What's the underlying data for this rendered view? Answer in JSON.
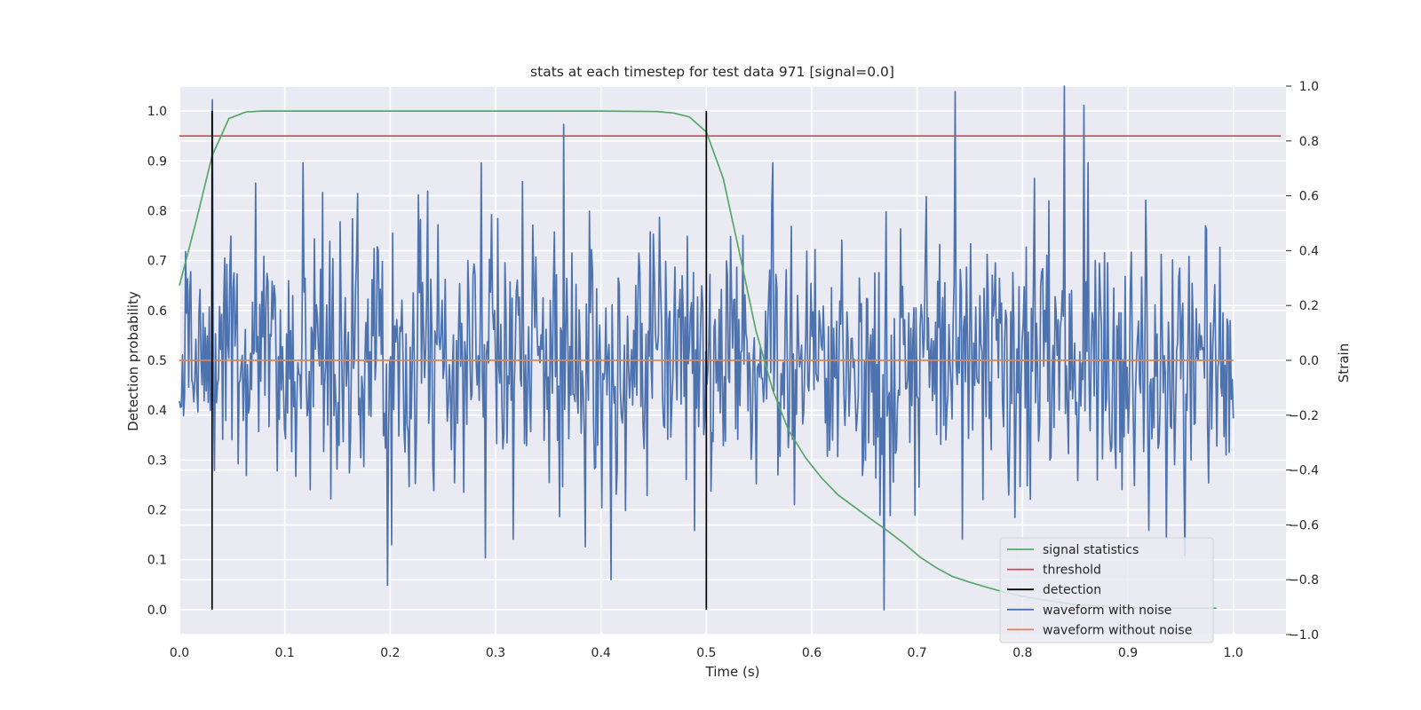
{
  "chart_data": {
    "type": "line",
    "title": "stats at each timestep for test data 971 [signal=0.0]",
    "xlabel": "Time (s)",
    "ylabel_left": "Detection probability",
    "ylabel_right": "Strain",
    "xlim": [
      0.0,
      1.05
    ],
    "ylim_left": [
      -0.05,
      1.05
    ],
    "ylim_right": [
      -1.0,
      1.0
    ],
    "x_ticks": [
      0.0,
      0.1,
      0.2,
      0.3,
      0.4,
      0.5,
      0.6,
      0.7,
      0.8,
      0.9,
      1.0
    ],
    "x_tick_labels": [
      "0.0",
      "0.1",
      "0.2",
      "0.3",
      "0.4",
      "0.5",
      "0.6",
      "0.7",
      "0.8",
      "0.9",
      "1.0"
    ],
    "y_left_ticks": [
      0.0,
      0.1,
      0.2,
      0.3,
      0.4,
      0.5,
      0.6,
      0.7,
      0.8,
      0.9,
      1.0
    ],
    "y_left_tick_labels": [
      "0.0",
      "0.1",
      "0.2",
      "0.3",
      "0.4",
      "0.5",
      "0.6",
      "0.7",
      "0.8",
      "0.9",
      "1.0"
    ],
    "y_right_ticks": [
      -1.0,
      -0.8,
      -0.6,
      -0.4,
      -0.2,
      0.0,
      0.2,
      0.4,
      0.6,
      0.8,
      1.0
    ],
    "y_right_tick_labels": [
      "−1.0",
      "−0.8",
      "−0.6",
      "−0.4",
      "−0.2",
      "0.0",
      "0.2",
      "0.4",
      "0.6",
      "0.8",
      "1.0"
    ],
    "grid": true,
    "legend_position": "bottom-right",
    "series": [
      {
        "name": "signal statistics",
        "axis": "left",
        "color": "#55a868",
        "x": [
          0.0,
          0.016,
          0.031,
          0.047,
          0.063,
          0.078,
          0.094,
          0.2,
          0.3,
          0.4,
          0.453,
          0.469,
          0.484,
          0.5,
          0.516,
          0.531,
          0.547,
          0.563,
          0.578,
          0.594,
          0.609,
          0.625,
          0.641,
          0.656,
          0.672,
          0.688,
          0.703,
          0.719,
          0.734,
          0.75,
          0.766,
          0.781,
          0.797,
          0.813,
          0.828,
          0.844,
          0.859,
          0.875,
          0.891,
          0.906,
          0.922,
          0.938,
          0.953,
          0.969,
          0.984
        ],
        "values": [
          0.65,
          0.78,
          0.91,
          0.985,
          0.998,
          1.0,
          1.0,
          1.0,
          1.0,
          1.0,
          0.999,
          0.996,
          0.988,
          0.958,
          0.865,
          0.72,
          0.56,
          0.44,
          0.36,
          0.305,
          0.265,
          0.23,
          0.205,
          0.182,
          0.158,
          0.132,
          0.105,
          0.083,
          0.066,
          0.055,
          0.045,
          0.036,
          0.028,
          0.022,
          0.017,
          0.012,
          0.009,
          0.007,
          0.005,
          0.004,
          0.003,
          0.003,
          0.003,
          0.003,
          0.003
        ]
      },
      {
        "name": "threshold",
        "axis": "left",
        "color": "#c44e52",
        "x": [
          0.0,
          1.045
        ],
        "values": [
          0.95,
          0.95
        ]
      },
      {
        "name": "detection",
        "axis": "left",
        "color": "#000000",
        "x": [
          0.031,
          0.5
        ],
        "values": [
          1.0,
          1.0
        ],
        "style": "vertical lines from 0.0 to value"
      },
      {
        "name": "waveform with noise",
        "axis": "right",
        "color": "#4c72b0",
        "x_range": [
          0.0,
          1.0
        ],
        "noise_std": 0.25,
        "peaks": [
          {
            "x": 0.736,
            "value": 0.98
          },
          {
            "x": 0.84,
            "value": 1.0
          },
          {
            "x": 0.858,
            "value": 0.93
          },
          {
            "x": 0.365,
            "value": 0.86
          },
          {
            "x": 0.669,
            "value": -0.91
          },
          {
            "x": 0.197,
            "value": -0.82
          },
          {
            "x": 0.41,
            "value": -0.8
          },
          {
            "x": 0.385,
            "value": -0.68
          },
          {
            "x": 0.031,
            "value": 0.95
          },
          {
            "x": 0.92,
            "value": -0.62
          }
        ]
      },
      {
        "name": "waveform without noise",
        "axis": "right",
        "color": "#dd8452",
        "x": [
          0.0,
          1.0
        ],
        "values": [
          0.0,
          0.0
        ]
      }
    ]
  }
}
